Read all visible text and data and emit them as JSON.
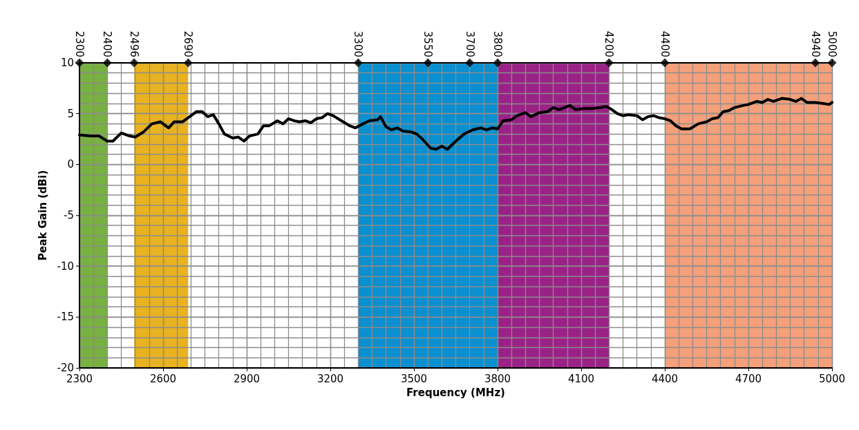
{
  "chart_data": {
    "type": "line",
    "xlabel": "Frequency (MHz)",
    "ylabel": "Peak Gain (dBi)",
    "xlim": [
      2300,
      5000
    ],
    "xticks": [
      2300,
      {
        "value": 2350,
        "label": null
      },
      {
        "value": 2400,
        "label": null
      },
      {
        "value": 2450,
        "label": null
      },
      {
        "value": 2500,
        "label": null
      },
      {
        "value": 2550,
        "label": null
      },
      2600,
      {
        "value": 2650,
        "label": null
      },
      {
        "value": 2700,
        "label": null
      },
      {
        "value": 2750,
        "label": null
      },
      {
        "value": 2800,
        "label": null
      },
      {
        "value": 2850,
        "label": null
      },
      2900,
      {
        "value": 2950,
        "label": null
      },
      {
        "value": 3000,
        "label": null
      },
      {
        "value": 3050,
        "label": null
      },
      {
        "value": 3100,
        "label": null
      },
      {
        "value": 3150,
        "label": null
      },
      3200,
      {
        "value": 3250,
        "label": null
      },
      {
        "value": 3300,
        "label": null
      },
      {
        "value": 3350,
        "label": null
      },
      {
        "value": 3400,
        "label": null
      },
      {
        "value": 3450,
        "label": null
      },
      3500,
      {
        "value": 3550,
        "label": null
      },
      {
        "value": 3600,
        "label": null
      },
      {
        "value": 3650,
        "label": null
      },
      {
        "value": 3700,
        "label": null
      },
      {
        "value": 3750,
        "label": null
      },
      3800,
      {
        "value": 3850,
        "label": null
      },
      {
        "value": 3900,
        "label": null
      },
      {
        "value": 3950,
        "label": null
      },
      {
        "value": 4000,
        "label": null
      },
      {
        "value": 4050,
        "label": null
      },
      4100,
      {
        "value": 4150,
        "label": null
      },
      {
        "value": 4200,
        "label": null
      },
      {
        "value": 4250,
        "label": null
      },
      {
        "value": 4300,
        "label": null
      },
      {
        "value": 4350,
        "label": null
      },
      4400,
      {
        "value": 4450,
        "label": null
      },
      {
        "value": 4500,
        "label": null
      },
      {
        "value": 4550,
        "label": null
      },
      {
        "value": 4600,
        "label": null
      },
      {
        "value": 4650,
        "label": null
      },
      4700,
      {
        "value": 4750,
        "label": null
      },
      {
        "value": 4800,
        "label": null
      },
      {
        "value": 4850,
        "label": null
      },
      {
        "value": 4900,
        "label": null
      },
      {
        "value": 4950,
        "label": null
      },
      5000
    ],
    "ylim": [
      -20,
      10
    ],
    "yticks": [
      -20,
      {
        "value": -19,
        "label": null
      },
      {
        "value": -18,
        "label": null
      },
      {
        "value": -17,
        "label": null
      },
      {
        "value": -16,
        "label": null
      },
      -15,
      {
        "value": -14,
        "label": null
      },
      {
        "value": -13,
        "label": null
      },
      {
        "value": -12,
        "label": null
      },
      {
        "value": -11,
        "label": null
      },
      -10,
      {
        "value": -9,
        "label": null
      },
      {
        "value": -8,
        "label": null
      },
      {
        "value": -7,
        "label": null
      },
      {
        "value": -6,
        "label": null
      },
      -5,
      {
        "value": -4,
        "label": null
      },
      {
        "value": -3,
        "label": null
      },
      {
        "value": -2,
        "label": null
      },
      {
        "value": -1,
        "label": null
      },
      0,
      {
        "value": 1,
        "label": null
      },
      {
        "value": 2,
        "label": null
      },
      {
        "value": 3,
        "label": null
      },
      {
        "value": 4,
        "label": null
      },
      5,
      {
        "value": 6,
        "label": null
      },
      {
        "value": 7,
        "label": null
      },
      {
        "value": 8,
        "label": null
      },
      {
        "value": 9,
        "label": null
      },
      10
    ],
    "x2lim": [
      2300,
      5000
    ],
    "x2ticks": [
      2300,
      2400,
      2496,
      2690,
      3300,
      3550,
      3700,
      3800,
      4200,
      4400,
      4940,
      5000
    ],
    "grid": true,
    "marker": "none",
    "line_style": "solid",
    "bands": [
      {
        "axis": "x",
        "from": 2300,
        "to": 2400,
        "color": "#78b042"
      },
      {
        "axis": "x",
        "from": 2496,
        "to": 2690,
        "color": "#e8b220"
      },
      {
        "axis": "x",
        "from": 3300,
        "to": 3800,
        "color": "#0a8fd0"
      },
      {
        "axis": "x",
        "from": 3800,
        "to": 4200,
        "color": "#9a2286"
      },
      {
        "axis": "x",
        "from": 4400,
        "to": 5000,
        "color": "#f5a07a"
      }
    ],
    "series": [
      {
        "color": "#000000",
        "x": [
          2300,
          2340,
          2370,
          2400,
          2420,
          2450,
          2480,
          2500,
          2530,
          2560,
          2590,
          2620,
          2640,
          2670,
          2700,
          2720,
          2740,
          2760,
          2780,
          2800,
          2820,
          2850,
          2870,
          2890,
          2910,
          2940,
          2960,
          2980,
          3010,
          3030,
          3050,
          3070,
          3090,
          3110,
          3130,
          3150,
          3170,
          3190,
          3210,
          3240,
          3270,
          3290,
          3310,
          3340,
          3370,
          3380,
          3400,
          3420,
          3440,
          3460,
          3490,
          3510,
          3530,
          3560,
          3580,
          3600,
          3620,
          3650,
          3680,
          3710,
          3740,
          3760,
          3780,
          3800,
          3820,
          3850,
          3870,
          3900,
          3920,
          3950,
          3980,
          4000,
          4020,
          4040,
          4060,
          4080,
          4110,
          4140,
          4170,
          4190,
          4210,
          4230,
          4250,
          4270,
          4300,
          4320,
          4340,
          4360,
          4380,
          4400,
          4420,
          4440,
          4460,
          4490,
          4520,
          4550,
          4570,
          4590,
          4610,
          4630,
          4650,
          4680,
          4700,
          4730,
          4750,
          4770,
          4790,
          4820,
          4850,
          4870,
          4890,
          4910,
          4940,
          4970,
          4990,
          5000
        ],
        "values": [
          2.9,
          2.8,
          2.8,
          2.3,
          2.3,
          3.1,
          2.8,
          2.7,
          3.2,
          4.0,
          4.2,
          3.6,
          4.2,
          4.2,
          4.8,
          5.2,
          5.2,
          4.7,
          4.9,
          4.0,
          3.0,
          2.6,
          2.7,
          2.3,
          2.8,
          3.0,
          3.8,
          3.8,
          4.3,
          4.0,
          4.5,
          4.3,
          4.2,
          4.3,
          4.1,
          4.5,
          4.6,
          5.0,
          4.8,
          4.3,
          3.8,
          3.6,
          3.9,
          4.3,
          4.4,
          4.7,
          3.7,
          3.4,
          3.6,
          3.3,
          3.2,
          3.0,
          2.5,
          1.6,
          1.5,
          1.8,
          1.5,
          2.3,
          3.0,
          3.4,
          3.6,
          3.4,
          3.6,
          3.5,
          4.3,
          4.4,
          4.8,
          5.1,
          4.7,
          5.1,
          5.2,
          5.6,
          5.4,
          5.6,
          5.8,
          5.4,
          5.5,
          5.5,
          5.6,
          5.7,
          5.4,
          5.0,
          4.8,
          4.9,
          4.8,
          4.4,
          4.7,
          4.8,
          4.6,
          4.5,
          4.3,
          3.8,
          3.5,
          3.5,
          4.0,
          4.2,
          4.5,
          4.6,
          5.2,
          5.3,
          5.6,
          5.8,
          5.9,
          6.2,
          6.1,
          6.4,
          6.2,
          6.5,
          6.4,
          6.2,
          6.5,
          6.1,
          6.1,
          6.0,
          5.9,
          6.1
        ]
      },
      {
        "type": "scatter",
        "color": "#000000",
        "marker": "diamond",
        "x": [
          2300,
          2400,
          2496,
          2690,
          3300,
          3550,
          3700,
          3800,
          4200,
          4400,
          4940,
          5000
        ],
        "values": [
          10,
          10,
          10,
          10,
          10,
          10,
          10,
          10,
          10,
          10,
          10,
          10
        ]
      }
    ]
  }
}
